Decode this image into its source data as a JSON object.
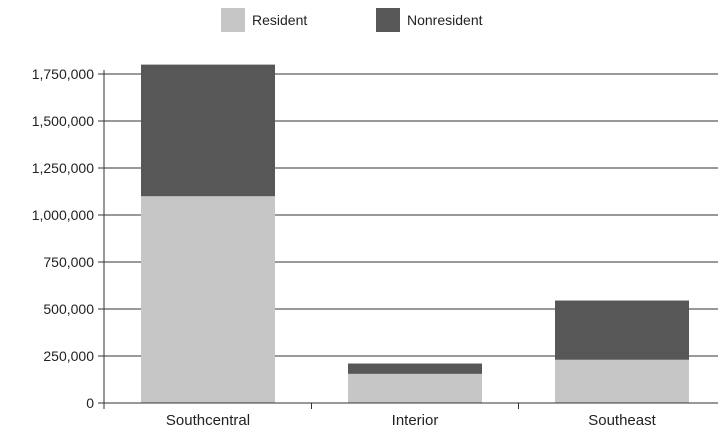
{
  "chart_data": {
    "type": "bar",
    "stacked": true,
    "categories": [
      "Southcentral",
      "Interior",
      "Southeast"
    ],
    "series": [
      {
        "name": "Resident",
        "values": [
          1100000,
          155000,
          230000
        ],
        "color": "#c6c6c6"
      },
      {
        "name": "Nonresident",
        "values": [
          700000,
          55000,
          315000
        ],
        "color": "#575757"
      }
    ],
    "ylim": [
      0,
      1750000
    ],
    "yticks": [
      0,
      250000,
      500000,
      750000,
      1000000,
      1250000,
      1500000,
      1750000
    ],
    "ytick_labels": [
      "0",
      "250,000",
      "500,000",
      "750,000",
      "1,000,000",
      "1,250,000",
      "1,500,000",
      "1,750,000"
    ],
    "grid": true,
    "legend_position": "top"
  }
}
